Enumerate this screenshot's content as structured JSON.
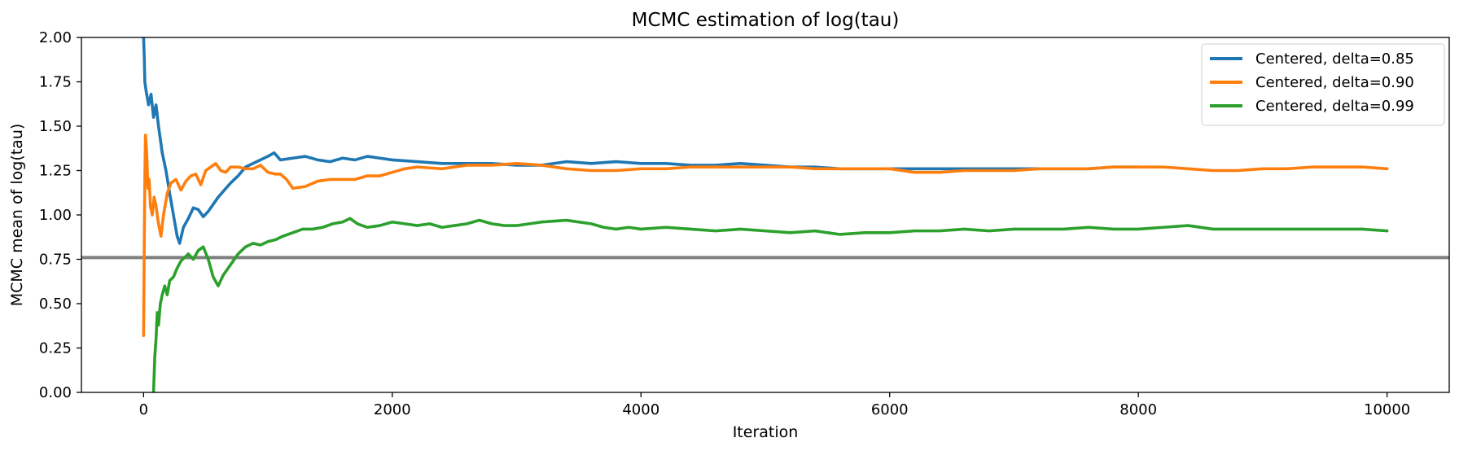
{
  "chart_data": {
    "type": "line",
    "title": "MCMC estimation of log(tau)",
    "xlabel": "Iteration",
    "ylabel": "MCMC mean of log(tau)",
    "xlim": [
      -500,
      10500
    ],
    "ylim": [
      0,
      2
    ],
    "xticks": [
      0,
      2000,
      4000,
      6000,
      8000,
      10000
    ],
    "yticks": [
      "0.00",
      "0.25",
      "0.50",
      "0.75",
      "1.00",
      "1.25",
      "1.50",
      "1.75",
      "2.00"
    ],
    "grid": false,
    "legend_position": "top-right",
    "reference_line": {
      "y": 0.76,
      "color": "#808080"
    },
    "series": [
      {
        "name": "Centered, delta=0.85",
        "color": "#1f77b4",
        "points": [
          [
            0,
            2.0
          ],
          [
            5,
            1.9
          ],
          [
            10,
            1.75
          ],
          [
            20,
            1.7
          ],
          [
            40,
            1.62
          ],
          [
            60,
            1.68
          ],
          [
            80,
            1.55
          ],
          [
            100,
            1.62
          ],
          [
            120,
            1.5
          ],
          [
            150,
            1.35
          ],
          [
            180,
            1.25
          ],
          [
            210,
            1.12
          ],
          [
            240,
            1.0
          ],
          [
            270,
            0.88
          ],
          [
            290,
            0.84
          ],
          [
            320,
            0.93
          ],
          [
            360,
            0.98
          ],
          [
            400,
            1.04
          ],
          [
            440,
            1.03
          ],
          [
            480,
            0.99
          ],
          [
            520,
            1.02
          ],
          [
            560,
            1.06
          ],
          [
            600,
            1.1
          ],
          [
            650,
            1.14
          ],
          [
            700,
            1.18
          ],
          [
            760,
            1.22
          ],
          [
            820,
            1.27
          ],
          [
            880,
            1.29
          ],
          [
            940,
            1.31
          ],
          [
            1000,
            1.33
          ],
          [
            1050,
            1.35
          ],
          [
            1100,
            1.31
          ],
          [
            1200,
            1.32
          ],
          [
            1300,
            1.33
          ],
          [
            1400,
            1.31
          ],
          [
            1500,
            1.3
          ],
          [
            1600,
            1.32
          ],
          [
            1700,
            1.31
          ],
          [
            1800,
            1.33
          ],
          [
            1900,
            1.32
          ],
          [
            2000,
            1.31
          ],
          [
            2200,
            1.3
          ],
          [
            2400,
            1.29
          ],
          [
            2600,
            1.29
          ],
          [
            2800,
            1.29
          ],
          [
            3000,
            1.28
          ],
          [
            3200,
            1.28
          ],
          [
            3400,
            1.3
          ],
          [
            3600,
            1.29
          ],
          [
            3800,
            1.3
          ],
          [
            4000,
            1.29
          ],
          [
            4200,
            1.29
          ],
          [
            4400,
            1.28
          ],
          [
            4600,
            1.28
          ],
          [
            4800,
            1.29
          ],
          [
            5000,
            1.28
          ],
          [
            5200,
            1.27
          ],
          [
            5400,
            1.27
          ],
          [
            5600,
            1.26
          ],
          [
            5800,
            1.26
          ],
          [
            6000,
            1.26
          ],
          [
            6200,
            1.26
          ],
          [
            6400,
            1.26
          ],
          [
            6600,
            1.26
          ],
          [
            6800,
            1.26
          ],
          [
            7000,
            1.26
          ],
          [
            7200,
            1.26
          ],
          [
            7400,
            1.26
          ],
          [
            7600,
            1.26
          ],
          [
            7800,
            1.27
          ],
          [
            8000,
            1.27
          ]
        ]
      },
      {
        "name": "Centered, delta=0.90",
        "color": "#ff7f0e",
        "points": [
          [
            0,
            0.32
          ],
          [
            5,
            0.8
          ],
          [
            10,
            1.2
          ],
          [
            15,
            1.45
          ],
          [
            25,
            1.35
          ],
          [
            35,
            1.15
          ],
          [
            45,
            1.2
          ],
          [
            55,
            1.05
          ],
          [
            70,
            1.0
          ],
          [
            85,
            1.1
          ],
          [
            100,
            1.05
          ],
          [
            120,
            0.95
          ],
          [
            140,
            0.88
          ],
          [
            160,
            1.0
          ],
          [
            190,
            1.12
          ],
          [
            220,
            1.18
          ],
          [
            260,
            1.2
          ],
          [
            300,
            1.14
          ],
          [
            340,
            1.19
          ],
          [
            380,
            1.22
          ],
          [
            420,
            1.23
          ],
          [
            460,
            1.17
          ],
          [
            500,
            1.25
          ],
          [
            540,
            1.27
          ],
          [
            580,
            1.29
          ],
          [
            620,
            1.25
          ],
          [
            660,
            1.24
          ],
          [
            700,
            1.27
          ],
          [
            760,
            1.27
          ],
          [
            820,
            1.26
          ],
          [
            880,
            1.26
          ],
          [
            940,
            1.28
          ],
          [
            1000,
            1.24
          ],
          [
            1060,
            1.23
          ],
          [
            1100,
            1.23
          ],
          [
            1150,
            1.2
          ],
          [
            1200,
            1.15
          ],
          [
            1300,
            1.16
          ],
          [
            1400,
            1.19
          ],
          [
            1500,
            1.2
          ],
          [
            1600,
            1.2
          ],
          [
            1700,
            1.2
          ],
          [
            1800,
            1.22
          ],
          [
            1900,
            1.22
          ],
          [
            2000,
            1.24
          ],
          [
            2100,
            1.26
          ],
          [
            2200,
            1.27
          ],
          [
            2400,
            1.26
          ],
          [
            2600,
            1.28
          ],
          [
            2800,
            1.28
          ],
          [
            3000,
            1.29
          ],
          [
            3200,
            1.28
          ],
          [
            3400,
            1.26
          ],
          [
            3600,
            1.25
          ],
          [
            3800,
            1.25
          ],
          [
            4000,
            1.26
          ],
          [
            4200,
            1.26
          ],
          [
            4400,
            1.27
          ],
          [
            4600,
            1.27
          ],
          [
            4800,
            1.27
          ],
          [
            5000,
            1.27
          ],
          [
            5200,
            1.27
          ],
          [
            5400,
            1.26
          ],
          [
            5600,
            1.26
          ],
          [
            5800,
            1.26
          ],
          [
            6000,
            1.26
          ],
          [
            6200,
            1.24
          ],
          [
            6400,
            1.24
          ],
          [
            6600,
            1.25
          ],
          [
            6800,
            1.25
          ],
          [
            7000,
            1.25
          ],
          [
            7200,
            1.26
          ],
          [
            7400,
            1.26
          ],
          [
            7600,
            1.26
          ],
          [
            7800,
            1.27
          ],
          [
            8000,
            1.27
          ],
          [
            8200,
            1.27
          ],
          [
            8400,
            1.26
          ],
          [
            8600,
            1.25
          ],
          [
            8800,
            1.25
          ],
          [
            9000,
            1.26
          ],
          [
            9200,
            1.26
          ],
          [
            9400,
            1.27
          ],
          [
            9600,
            1.27
          ],
          [
            9800,
            1.27
          ],
          [
            10000,
            1.26
          ]
        ]
      },
      {
        "name": "Centered, delta=0.99",
        "color": "#2ca02c",
        "points": [
          [
            80,
            0.0
          ],
          [
            90,
            0.2
          ],
          [
            100,
            0.3
          ],
          [
            110,
            0.45
          ],
          [
            120,
            0.38
          ],
          [
            135,
            0.5
          ],
          [
            150,
            0.55
          ],
          [
            170,
            0.6
          ],
          [
            190,
            0.55
          ],
          [
            210,
            0.63
          ],
          [
            240,
            0.65
          ],
          [
            270,
            0.7
          ],
          [
            300,
            0.74
          ],
          [
            330,
            0.76
          ],
          [
            360,
            0.78
          ],
          [
            400,
            0.75
          ],
          [
            440,
            0.8
          ],
          [
            480,
            0.82
          ],
          [
            520,
            0.75
          ],
          [
            560,
            0.65
          ],
          [
            600,
            0.6
          ],
          [
            640,
            0.66
          ],
          [
            700,
            0.72
          ],
          [
            760,
            0.78
          ],
          [
            820,
            0.82
          ],
          [
            880,
            0.84
          ],
          [
            940,
            0.83
          ],
          [
            1000,
            0.85
          ],
          [
            1060,
            0.86
          ],
          [
            1120,
            0.88
          ],
          [
            1200,
            0.9
          ],
          [
            1280,
            0.92
          ],
          [
            1360,
            0.92
          ],
          [
            1440,
            0.93
          ],
          [
            1520,
            0.95
          ],
          [
            1600,
            0.96
          ],
          [
            1660,
            0.98
          ],
          [
            1720,
            0.95
          ],
          [
            1800,
            0.93
          ],
          [
            1900,
            0.94
          ],
          [
            2000,
            0.96
          ],
          [
            2100,
            0.95
          ],
          [
            2200,
            0.94
          ],
          [
            2300,
            0.95
          ],
          [
            2400,
            0.93
          ],
          [
            2500,
            0.94
          ],
          [
            2600,
            0.95
          ],
          [
            2700,
            0.97
          ],
          [
            2800,
            0.95
          ],
          [
            2900,
            0.94
          ],
          [
            3000,
            0.94
          ],
          [
            3200,
            0.96
          ],
          [
            3400,
            0.97
          ],
          [
            3600,
            0.95
          ],
          [
            3700,
            0.93
          ],
          [
            3800,
            0.92
          ],
          [
            3900,
            0.93
          ],
          [
            4000,
            0.92
          ],
          [
            4200,
            0.93
          ],
          [
            4400,
            0.92
          ],
          [
            4600,
            0.91
          ],
          [
            4800,
            0.92
          ],
          [
            5000,
            0.91
          ],
          [
            5200,
            0.9
          ],
          [
            5400,
            0.91
          ],
          [
            5600,
            0.89
          ],
          [
            5800,
            0.9
          ],
          [
            6000,
            0.9
          ],
          [
            6200,
            0.91
          ],
          [
            6400,
            0.91
          ],
          [
            6600,
            0.92
          ],
          [
            6800,
            0.91
          ],
          [
            7000,
            0.92
          ],
          [
            7200,
            0.92
          ],
          [
            7400,
            0.92
          ],
          [
            7600,
            0.93
          ],
          [
            7800,
            0.92
          ],
          [
            8000,
            0.92
          ],
          [
            8200,
            0.93
          ],
          [
            8400,
            0.94
          ],
          [
            8600,
            0.92
          ],
          [
            8800,
            0.92
          ],
          [
            9000,
            0.92
          ],
          [
            9200,
            0.92
          ],
          [
            9400,
            0.92
          ],
          [
            9600,
            0.92
          ],
          [
            9800,
            0.92
          ],
          [
            10000,
            0.91
          ]
        ]
      }
    ]
  }
}
